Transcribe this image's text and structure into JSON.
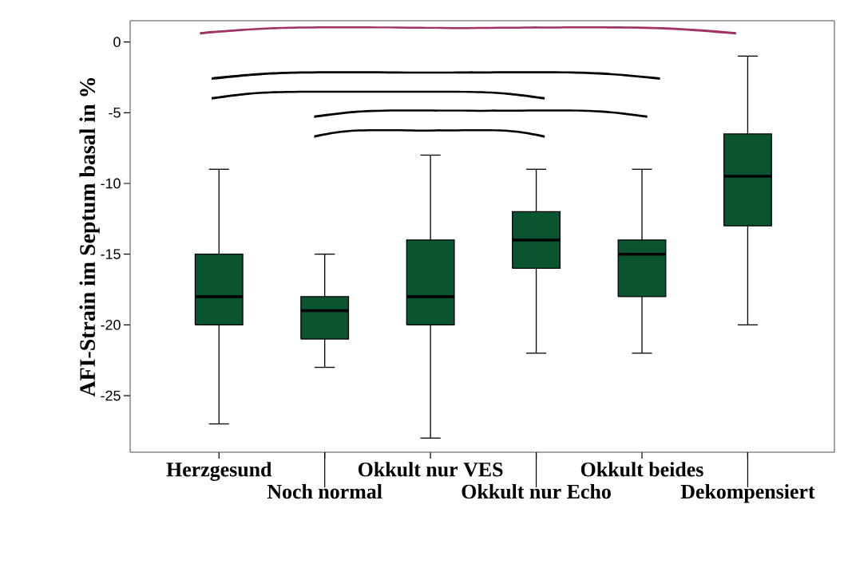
{
  "chart_data": {
    "type": "box",
    "ylabel": "AFI-Strain im Septum basal in %",
    "categories": [
      "Herzgesund",
      "Noch normal",
      "Okkult nur VES",
      "Okkult nur Echo",
      "Okkult beides",
      "Dekompensiert"
    ],
    "color": "#0b5430",
    "boxes": [
      {
        "low": -27,
        "q1": -20,
        "median": -18,
        "q3": -15,
        "high": -9
      },
      {
        "low": -23,
        "q1": -21,
        "median": -19,
        "q3": -18,
        "high": -15
      },
      {
        "low": -28,
        "q1": -20,
        "median": -18,
        "q3": -14,
        "high": -8
      },
      {
        "low": -22,
        "q1": -16,
        "median": -14,
        "q3": -12,
        "high": -9
      },
      {
        "low": -22,
        "q1": -18,
        "median": -15,
        "q3": -14,
        "high": -9
      },
      {
        "low": -20,
        "q1": -13,
        "median": -9.5,
        "q3": -6.5,
        "high": -1
      }
    ],
    "ylim": [
      -29,
      1.5
    ],
    "yticks": [
      -25,
      -20,
      -15,
      -10,
      -5,
      0
    ],
    "grid": false
  }
}
